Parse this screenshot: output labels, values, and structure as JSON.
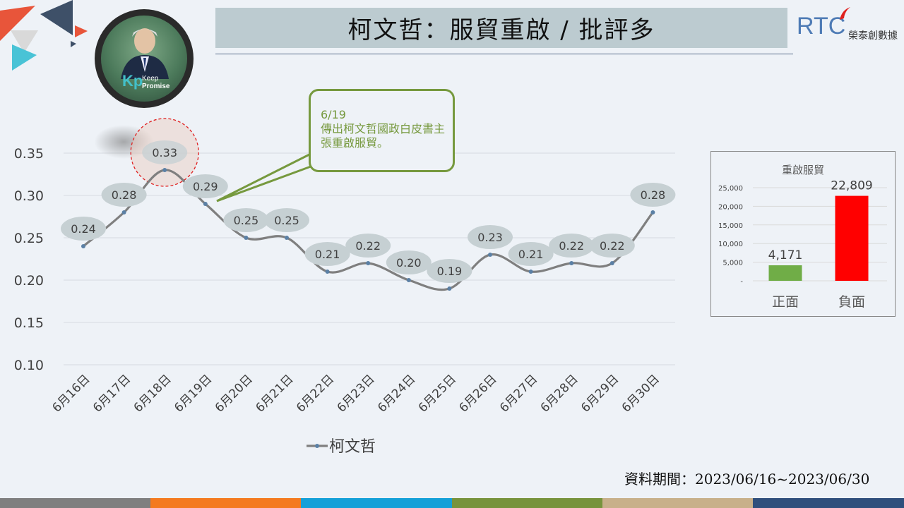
{
  "title": "柯文哲：服貿重啟 / 批評多",
  "logo": {
    "brand": "RTC",
    "subtitle": "榮泰創數據"
  },
  "avatar": {
    "kp_letters": "Kp",
    "kp_word1": "Keep",
    "kp_word2": "Promise"
  },
  "callout": {
    "date": "6/19",
    "text": "傳出柯文哲國政白皮書主張重啟服貿。"
  },
  "footer": {
    "period": "資料期間：2023/06/16~2023/06/30"
  },
  "colors": {
    "line": "#7f7f7f",
    "marker": "#5b80a5",
    "label_fill": "#c6d0d3",
    "positive": "#70ad47",
    "negative": "#ff0000",
    "callout": "#76993e"
  },
  "chart_data": [
    {
      "type": "line",
      "categories": [
        "6月16日",
        "6月17日",
        "6月18日",
        "6月19日",
        "6月20日",
        "6月21日",
        "6月22日",
        "6月23日",
        "6月24日",
        "6月25日",
        "6月26日",
        "6月27日",
        "6月28日",
        "6月29日",
        "6月30日"
      ],
      "series": [
        {
          "name": "柯文哲",
          "values": [
            0.24,
            0.28,
            0.33,
            0.29,
            0.25,
            0.25,
            0.21,
            0.22,
            0.2,
            0.19,
            0.23,
            0.21,
            0.22,
            0.22,
            0.28
          ]
        }
      ],
      "data_labels": [
        "0.24",
        "0.28",
        "0.33",
        "0.29",
        "0.25",
        "0.25",
        "0.21",
        "0.22",
        "0.20",
        "0.19",
        "0.23",
        "0.21",
        "0.22",
        "0.22",
        "0.28"
      ],
      "ylim": [
        0.1,
        0.35
      ],
      "yticks": [
        "0.10",
        "0.15",
        "0.20",
        "0.25",
        "0.30",
        "0.35"
      ],
      "grid": true,
      "legend": "bottom",
      "highlight_category": "6月18日"
    },
    {
      "type": "bar",
      "title": "重啟服貿",
      "categories": [
        "正面",
        "負面"
      ],
      "values": [
        4171,
        22809
      ],
      "data_labels": [
        "4,171",
        "22,809"
      ],
      "ylim": [
        0,
        25000
      ],
      "yticks": [
        "-",
        "5,000",
        "10,000",
        "15,000",
        "20,000",
        "25,000"
      ]
    }
  ]
}
